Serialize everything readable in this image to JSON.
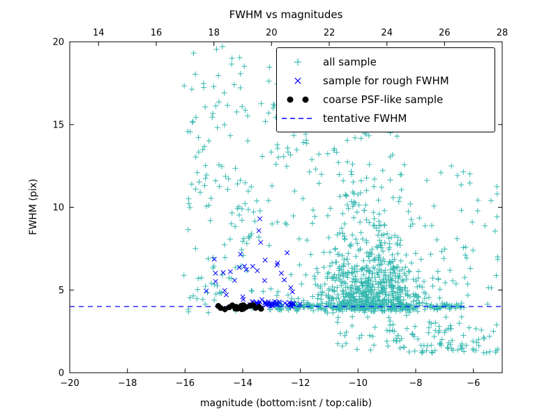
{
  "figure": {
    "background": "#ffffff"
  },
  "chart_data": {
    "type": "scatter",
    "title": "FWHM vs magnitudes",
    "xlabel": "magnitude (bottom:isnt / top:calib)",
    "ylabel": "FWHM (pix)",
    "xlim": [
      -20,
      -5
    ],
    "xlim_top": [
      13,
      28
    ],
    "ylim": [
      0,
      20
    ],
    "xticks_bottom": [
      -20,
      -18,
      -16,
      -14,
      -12,
      -10,
      -8,
      -6
    ],
    "xticks_top": [
      14,
      16,
      18,
      20,
      22,
      24,
      26,
      28
    ],
    "yticks": [
      0,
      5,
      10,
      15,
      20
    ],
    "grid": false,
    "legend_position": "upper right",
    "tentative_fwhm": 4.0,
    "axis_color": "#000000",
    "seed": 7,
    "series": [
      {
        "name": "all sample",
        "marker": "plus",
        "color": "#35b8b0",
        "clusters": [
          {
            "n": 600,
            "x": {
              "dist": "normal",
              "mean": -9.6,
              "sd": 0.85,
              "min": -12.2,
              "max": -6.6
            },
            "y": {
              "dist": "halfnormal",
              "base": 3.7,
              "scale": 1.9,
              "max": 12
            }
          },
          {
            "n": 90,
            "x": {
              "dist": "normal",
              "mean": -9.8,
              "sd": 0.75,
              "min": -11.8,
              "max": -7.8
            },
            "y": {
              "dist": "power",
              "base": 8,
              "range": 8.8,
              "exp": 1.4
            }
          },
          {
            "n": 12,
            "x": {
              "dist": "uniform",
              "min": -10.6,
              "max": -8.6
            },
            "y": {
              "dist": "uniform",
              "min": 14,
              "max": 19.2
            }
          },
          {
            "n": 200,
            "x": {
              "dist": "uniform",
              "min": -15.9,
              "max": -10.6
            },
            "y": {
              "dist": "power",
              "base": 3.6,
              "range": 16.2,
              "exp": 1.25
            }
          },
          {
            "n": 150,
            "x": {
              "dist": "uniform",
              "min": -8.9,
              "max": -5.1
            },
            "y": {
              "dist": "power",
              "base": 1.2,
              "range": 11.5,
              "exp": 2.0
            }
          },
          {
            "n": 240,
            "x": {
              "dist": "uniform",
              "min": -12.9,
              "max": -6.3
            },
            "y": {
              "dist": "normal",
              "mean": 4.0,
              "sd": 0.12
            }
          },
          {
            "n": 50,
            "x": {
              "dist": "uniform",
              "min": -10.8,
              "max": -6.4
            },
            "y": {
              "dist": "uniform",
              "min": 1.3,
              "max": 3.4
            }
          },
          {
            "n": 40,
            "x": {
              "dist": "uniform",
              "min": -16.1,
              "max": -13.8
            },
            "y": {
              "dist": "power",
              "base": 4.2,
              "range": 15.2,
              "exp": 1.1
            }
          }
        ]
      },
      {
        "name": "sample for rough FWHM",
        "marker": "x",
        "color": "#0000ff",
        "clusters": [
          {
            "n": 34,
            "x": {
              "dist": "uniform",
              "min": -15.3,
              "max": -12.2
            },
            "y": {
              "dist": "halfnormal",
              "base": 4.0,
              "scale": 2.6,
              "max": 12.4
            }
          },
          {
            "n": 46,
            "x": {
              "dist": "uniform",
              "min": -13.7,
              "max": -12.0
            },
            "y": {
              "dist": "normal",
              "mean": 4.15,
              "sd": 0.1
            }
          }
        ]
      },
      {
        "name": "coarse PSF-like sample",
        "marker": "dot",
        "color": "#000000",
        "clusters": [
          {
            "n": 18,
            "x": {
              "dist": "uniform",
              "min": -14.85,
              "max": -13.35
            },
            "y": {
              "dist": "normal",
              "mean": 3.95,
              "sd": 0.07
            }
          }
        ]
      },
      {
        "name": "tentative FWHM",
        "type": "hline",
        "y": 4.0,
        "color": "#0000ff",
        "style": "dashed"
      }
    ]
  },
  "legend": {
    "items": [
      {
        "label": "all sample",
        "marker": "plus",
        "color": "#35b8b0",
        "count": 1
      },
      {
        "label": "sample for rough FWHM",
        "marker": "x",
        "color": "#0000ff",
        "count": 1
      },
      {
        "label": "coarse PSF-like sample",
        "marker": "dot",
        "color": "#000000",
        "count": 2
      },
      {
        "label": "tentative FWHM",
        "marker": "dashed-line",
        "color": "#0000ff",
        "count": 1
      }
    ]
  }
}
